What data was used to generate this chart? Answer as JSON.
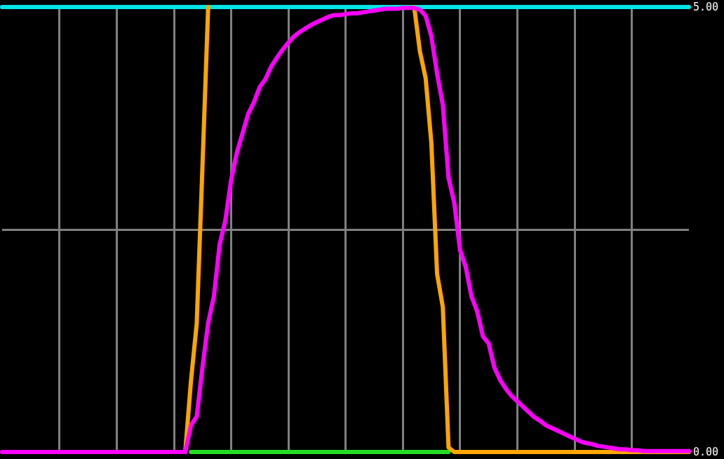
{
  "chart_data": {
    "type": "line",
    "categories": [
      null,
      null,
      null,
      null,
      null,
      null,
      null,
      null,
      null,
      null,
      null,
      null,
      null,
      null,
      null,
      null,
      null,
      null,
      null,
      null,
      null,
      null,
      null,
      null,
      null,
      null,
      null,
      null,
      null,
      null,
      null,
      null,
      null,
      null,
      null,
      null,
      null,
      null,
      null,
      null,
      null,
      null,
      null,
      null,
      null,
      null,
      null,
      null,
      null,
      null,
      null,
      null,
      null,
      null,
      null,
      null,
      null,
      null,
      null,
      null,
      null,
      null,
      null,
      null,
      null,
      null,
      null,
      null,
      null,
      null,
      null,
      null,
      null,
      null,
      null,
      null,
      null,
      null,
      null,
      null,
      null,
      null,
      null,
      null,
      null,
      null,
      null,
      null,
      null,
      null,
      null,
      null,
      null,
      null,
      null,
      null,
      null,
      null,
      null,
      null,
      null,
      null,
      null,
      null,
      null,
      null,
      null,
      null,
      null,
      null,
      null,
      null,
      null,
      null,
      null,
      null,
      null,
      null,
      null,
      null,
      null
    ],
    "ylim": [
      0,
      5
    ],
    "yticks": [
      {
        "value": 0,
        "label": "0.00"
      },
      {
        "value": 2.5,
        "label": null
      },
      {
        "value": 5,
        "label": "5.00"
      }
    ],
    "grid": true,
    "marker": "none",
    "series": [
      {
        "color": "#00e5e5",
        "values": [
          5,
          5,
          5,
          5,
          5,
          5,
          5,
          5,
          5,
          5,
          5,
          5,
          5,
          5,
          5,
          5,
          5,
          5,
          5,
          5,
          5,
          5,
          5,
          5,
          5,
          5,
          5,
          5,
          5,
          5,
          5,
          5,
          5,
          5,
          5,
          5,
          5,
          5,
          5,
          5,
          5,
          5,
          5,
          5,
          5,
          5,
          5,
          5,
          5,
          5,
          5,
          5,
          5,
          5,
          5,
          5,
          5,
          5,
          5,
          5,
          5,
          5,
          5,
          5,
          5,
          5,
          5,
          5,
          5,
          5,
          5,
          5,
          5,
          5,
          5,
          5,
          5,
          5,
          5,
          5,
          5,
          5,
          5,
          5,
          5,
          5,
          5,
          5,
          5,
          5,
          5,
          5,
          5,
          5,
          5,
          5,
          5,
          5,
          5,
          5,
          5,
          5,
          5,
          5,
          5,
          5,
          5,
          5,
          5,
          5,
          5,
          5,
          5,
          5,
          5,
          5,
          5,
          5,
          5,
          5,
          5
        ]
      },
      {
        "color": "#22dd22",
        "values": [
          null,
          null,
          null,
          null,
          null,
          null,
          null,
          null,
          null,
          null,
          null,
          null,
          null,
          null,
          null,
          null,
          null,
          null,
          null,
          null,
          null,
          null,
          null,
          null,
          null,
          null,
          null,
          null,
          null,
          null,
          null,
          null,
          null,
          0,
          0,
          0,
          0,
          0,
          0,
          0,
          0,
          0,
          0,
          0,
          0,
          0,
          0,
          0,
          0,
          0,
          0,
          0,
          0,
          0,
          0,
          0,
          0,
          0,
          0,
          0,
          0,
          0,
          0,
          0,
          0,
          0,
          0,
          0,
          0,
          0,
          0,
          0,
          0,
          0,
          0,
          0,
          0,
          0,
          0,
          null,
          null,
          null,
          null,
          null,
          null,
          null,
          null,
          null,
          null,
          null,
          null,
          null,
          null,
          null,
          null,
          null,
          null,
          null,
          null,
          null,
          null,
          null,
          null,
          null,
          null,
          null,
          null,
          null,
          null,
          null,
          null,
          null,
          null,
          null,
          null,
          null,
          null,
          null,
          null,
          null,
          null
        ]
      },
      {
        "color": "#ffa500",
        "values": [
          null,
          null,
          null,
          null,
          null,
          null,
          null,
          null,
          null,
          null,
          null,
          null,
          null,
          null,
          null,
          null,
          null,
          null,
          null,
          null,
          null,
          null,
          null,
          null,
          null,
          null,
          null,
          null,
          null,
          null,
          null,
          null,
          0,
          0.8,
          1.44,
          3.2,
          5,
          null,
          null,
          null,
          null,
          null,
          null,
          null,
          null,
          null,
          null,
          null,
          null,
          null,
          null,
          null,
          null,
          null,
          null,
          null,
          null,
          null,
          null,
          null,
          null,
          null,
          null,
          null,
          null,
          null,
          null,
          null,
          null,
          null,
          null,
          null,
          5,
          4.5,
          4.2,
          3.47,
          2.0,
          1.63,
          0.05,
          0,
          0,
          0,
          0,
          0,
          0,
          0,
          0,
          0,
          0,
          0,
          0,
          0,
          0,
          0,
          0,
          0,
          0,
          0,
          0,
          0,
          0,
          0,
          0,
          0,
          0,
          0,
          0,
          0,
          0,
          0,
          0,
          0,
          0,
          0,
          0,
          0,
          0,
          0,
          0,
          0,
          0
        ]
      },
      {
        "color": "#ff00ff",
        "values": [
          0,
          0,
          0,
          0,
          0,
          0,
          0,
          0,
          0,
          0,
          0,
          0,
          0,
          0,
          0,
          0,
          0,
          0,
          0,
          0,
          0,
          0,
          0,
          0,
          0,
          0,
          0,
          0,
          0,
          0,
          0,
          0,
          0,
          0.3,
          0.4,
          0.95,
          1.45,
          1.75,
          2.33,
          2.6,
          3.05,
          3.36,
          3.58,
          3.8,
          3.93,
          4.1,
          4.19,
          4.33,
          4.43,
          4.52,
          4.6,
          4.67,
          4.72,
          4.76,
          4.8,
          4.83,
          4.86,
          4.89,
          4.91,
          4.91,
          4.92,
          4.93,
          4.93,
          4.94,
          4.95,
          4.96,
          4.97,
          4.98,
          4.98,
          4.98,
          4.99,
          4.99,
          4.99,
          4.97,
          4.9,
          4.67,
          4.25,
          3.9,
          3.08,
          2.8,
          2.27,
          2.08,
          1.75,
          1.58,
          1.3,
          1.22,
          0.95,
          0.81,
          0.71,
          0.63,
          0.57,
          0.51,
          0.45,
          0.39,
          0.35,
          0.3,
          0.27,
          0.24,
          0.21,
          0.18,
          0.15,
          0.12,
          0.1,
          0.09,
          0.07,
          0.06,
          0.05,
          0.04,
          0.03,
          0.03,
          0.02,
          0.02,
          0.01,
          0.01,
          0.01,
          0.01,
          0.01,
          0.01,
          0.01,
          0.01,
          0.01
        ]
      }
    ]
  }
}
